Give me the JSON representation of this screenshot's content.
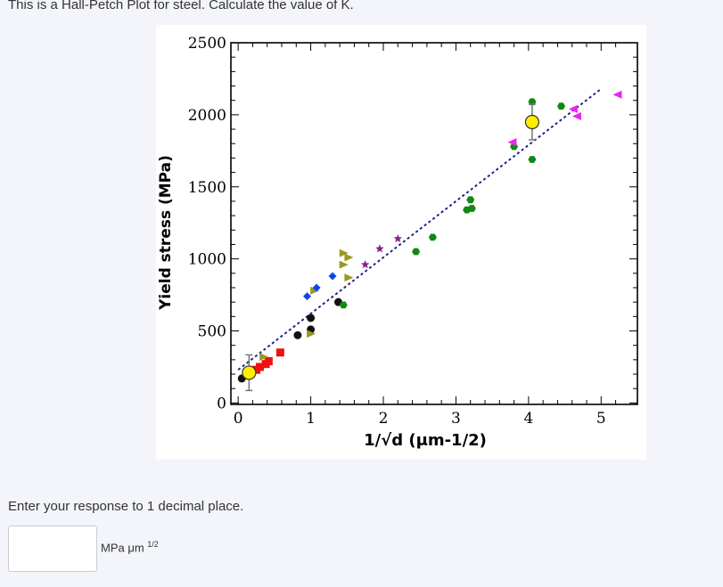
{
  "question": "This is a Hall-Petch Plot for steel. Calculate the value of K.",
  "instruction": "Enter your response to 1 decimal place.",
  "answer": {
    "value": "",
    "unit": "MPa μm",
    "unit_exponent": "1/2"
  },
  "chart_data": {
    "type": "scatter",
    "title": "",
    "xlabel": "1/√d (μm-1/2)",
    "ylabel": "Yield stress (MPa)",
    "xlim": [
      -0.1,
      5.5
    ],
    "ylim": [
      -10,
      2500
    ],
    "xticks": [
      "0",
      "1",
      "2",
      "3",
      "4",
      "5"
    ],
    "yticks": [
      "0",
      "500",
      "1000",
      "1500",
      "2000",
      "2500"
    ],
    "grid": false,
    "colors": {
      "red": "#ee1111",
      "black": "#111111",
      "olive": "#999922",
      "blue": "#1144ee",
      "purple": "#882288",
      "green": "#118811",
      "magenta": "#ee22ee",
      "yellow": "#ffee00",
      "fit": "#22228a"
    },
    "series": [
      {
        "marker": "square",
        "color": "#ee1111",
        "points": [
          [
            0.25,
            230
          ],
          [
            0.3,
            250
          ],
          [
            0.38,
            270
          ],
          [
            0.42,
            290
          ],
          [
            0.58,
            350
          ]
        ]
      },
      {
        "marker": "circle",
        "color": "#111111",
        "points": [
          [
            0.05,
            170
          ],
          [
            0.82,
            470
          ],
          [
            1.0,
            510
          ],
          [
            1.0,
            590
          ],
          [
            1.38,
            700
          ]
        ]
      },
      {
        "marker": "triangle-right",
        "color": "#999922",
        "points": [
          [
            0.35,
            320
          ],
          [
            1.0,
            480
          ],
          [
            1.05,
            780
          ],
          [
            1.45,
            960
          ],
          [
            1.45,
            1040
          ],
          [
            1.52,
            1010
          ],
          [
            1.52,
            870
          ]
        ]
      },
      {
        "marker": "diamond",
        "color": "#1144ee",
        "points": [
          [
            0.95,
            740
          ],
          [
            1.08,
            800
          ],
          [
            1.3,
            880
          ]
        ]
      },
      {
        "marker": "star",
        "color": "#882288",
        "points": [
          [
            1.75,
            960
          ],
          [
            1.95,
            1070
          ],
          [
            2.2,
            1140
          ]
        ]
      },
      {
        "marker": "hexagon",
        "color": "#118811",
        "points": [
          [
            1.45,
            680
          ],
          [
            2.45,
            1050
          ],
          [
            2.68,
            1150
          ],
          [
            3.15,
            1340
          ],
          [
            3.22,
            1350
          ],
          [
            3.2,
            1410
          ],
          [
            3.8,
            1780
          ],
          [
            4.05,
            2090
          ],
          [
            4.05,
            1690
          ],
          [
            4.45,
            2060
          ]
        ]
      },
      {
        "marker": "triangle-left",
        "color": "#ee22ee",
        "points": [
          [
            3.78,
            1810
          ],
          [
            4.62,
            2040
          ],
          [
            4.67,
            1990
          ],
          [
            5.23,
            2140
          ]
        ]
      },
      {
        "marker": "circle-errorbar",
        "color": "#ffee00",
        "points": [
          [
            0.15,
            210
          ],
          [
            4.05,
            1950
          ]
        ]
      }
    ],
    "fit_line": {
      "x": [
        0.0,
        5.0
      ],
      "y": [
        230,
        2180
      ]
    }
  }
}
